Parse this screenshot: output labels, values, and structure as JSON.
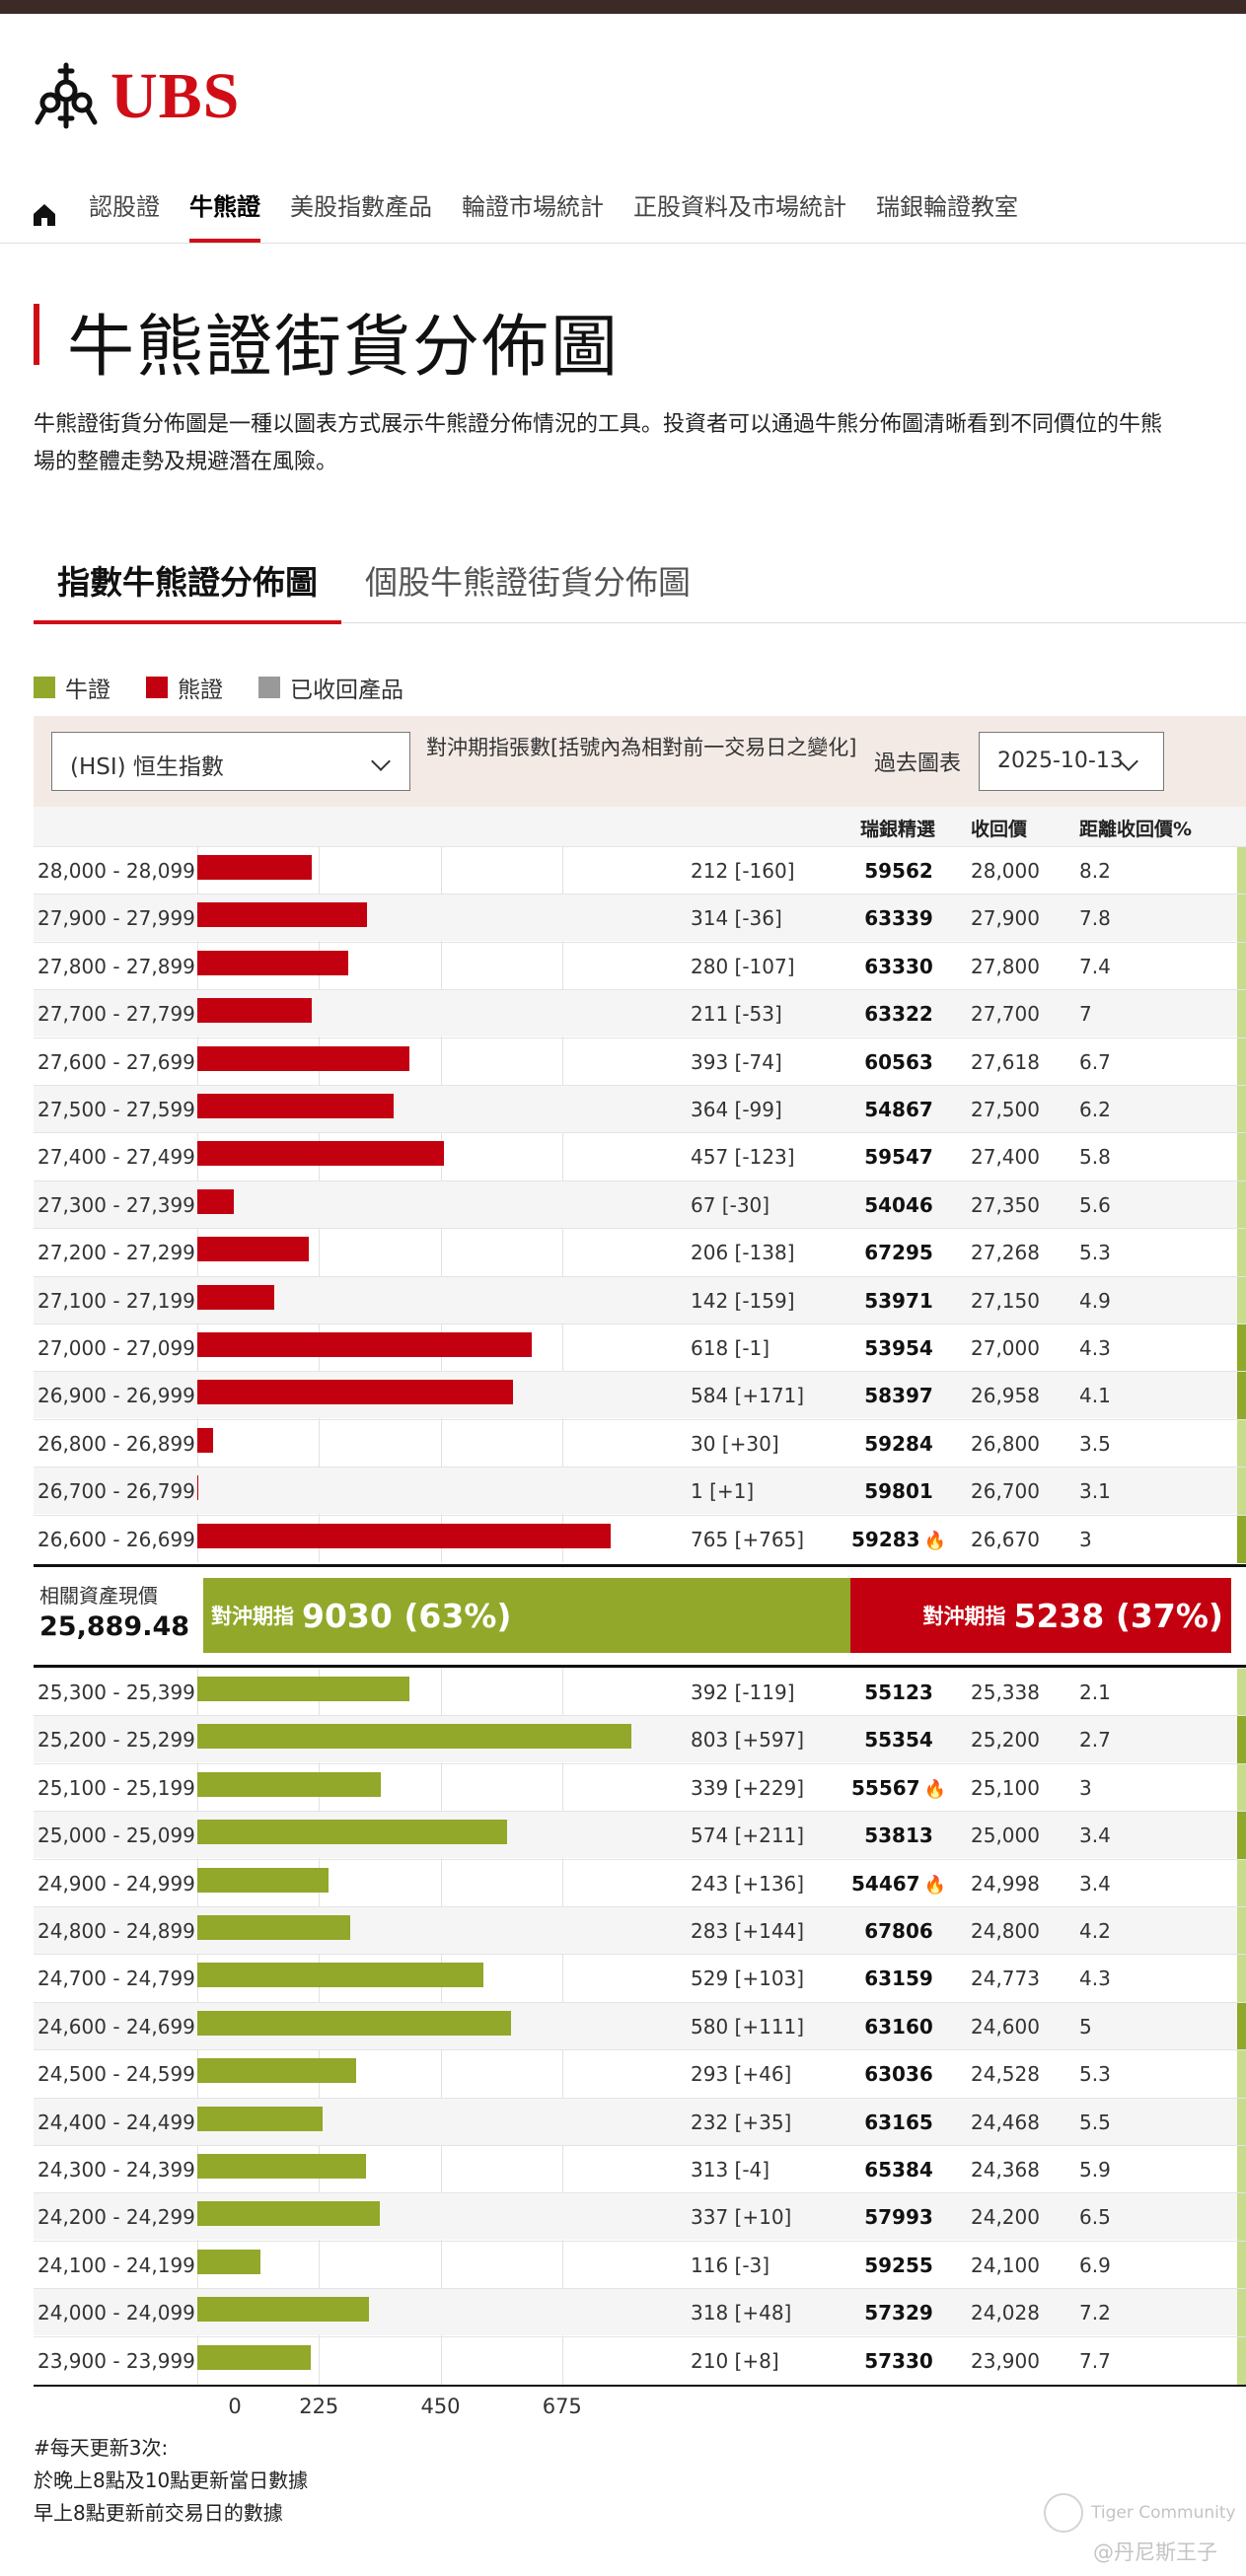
{
  "brand": {
    "name": "UBS",
    "color": "#d00d16"
  },
  "nav": {
    "items": [
      "認股證",
      "牛熊證",
      "美股指數產品",
      "輪證市場統計",
      "正股資料及市場統計",
      "瑞銀輪證教室"
    ],
    "active": "牛熊證"
  },
  "page": {
    "title": "牛熊證街貨分佈圖",
    "intro_line1": "牛熊證街貨分佈圖是一種以圖表方式展示牛熊證分佈情況的工具。投資者可以通過牛熊分佈圖清晰看到不同價位的牛熊",
    "intro_line2": "場的整體走勢及規避潛在風險。"
  },
  "tabs": [
    {
      "label": "指數牛熊證分佈圖",
      "active": true
    },
    {
      "label": "個股牛熊證街貨分佈圖",
      "active": false
    }
  ],
  "legend": [
    {
      "label": "牛證",
      "color": "#91a82a"
    },
    {
      "label": "熊證",
      "color": "#c20010"
    },
    {
      "label": "已收回產品",
      "color": "#999999"
    }
  ],
  "controls": {
    "index_select": "(HSI) 恒生指數",
    "note": "對沖期指張數[括號內為相對前一交易日之變化]",
    "past_label": "過去圖表",
    "date": "2025-10-13"
  },
  "table_headers": {
    "code": "瑞銀精選",
    "call": "收回價",
    "dist": "距離收回價%"
  },
  "current": {
    "label": "相關資產現價",
    "value": "25,889.48",
    "bull_prefix": "對沖期指",
    "bull_value": "9030 (63%)",
    "bear_prefix": "對沖期指",
    "bear_value": "5238 (37%)"
  },
  "chart_data": {
    "type": "bar",
    "orientation": "horizontal",
    "x_ticks": [
      "0",
      "225",
      "450",
      "675"
    ],
    "xlim": [
      0,
      900
    ],
    "bear": [
      {
        "range": "28,000 - 28,099",
        "value": 212,
        "label": "212 [-160]",
        "code": "59562",
        "flame": false,
        "call": "28,000",
        "dist": "8.2"
      },
      {
        "range": "27,900 - 27,999",
        "value": 314,
        "label": "314 [-36]",
        "code": "63339",
        "flame": false,
        "call": "27,900",
        "dist": "7.8"
      },
      {
        "range": "27,800 - 27,899",
        "value": 280,
        "label": "280 [-107]",
        "code": "63330",
        "flame": false,
        "call": "27,800",
        "dist": "7.4"
      },
      {
        "range": "27,700 - 27,799",
        "value": 211,
        "label": "211 [-53]",
        "code": "63322",
        "flame": false,
        "call": "27,700",
        "dist": "7"
      },
      {
        "range": "27,600 - 27,699",
        "value": 393,
        "label": "393 [-74]",
        "code": "60563",
        "flame": false,
        "call": "27,618",
        "dist": "6.7"
      },
      {
        "range": "27,500 - 27,599",
        "value": 364,
        "label": "364 [-99]",
        "code": "54867",
        "flame": false,
        "call": "27,500",
        "dist": "6.2"
      },
      {
        "range": "27,400 - 27,499",
        "value": 457,
        "label": "457 [-123]",
        "code": "59547",
        "flame": false,
        "call": "27,400",
        "dist": "5.8"
      },
      {
        "range": "27,300 - 27,399",
        "value": 67,
        "label": "67 [-30]",
        "code": "54046",
        "flame": false,
        "call": "27,350",
        "dist": "5.6"
      },
      {
        "range": "27,200 - 27,299",
        "value": 206,
        "label": "206 [-138]",
        "code": "67295",
        "flame": false,
        "call": "27,268",
        "dist": "5.3"
      },
      {
        "range": "27,100 - 27,199",
        "value": 142,
        "label": "142 [-159]",
        "code": "53971",
        "flame": false,
        "call": "27,150",
        "dist": "4.9"
      },
      {
        "range": "27,000 - 27,099",
        "value": 618,
        "label": "618 [-1]",
        "code": "53954",
        "flame": false,
        "call": "27,000",
        "dist": "4.3"
      },
      {
        "range": "26,900 - 26,999",
        "value": 584,
        "label": "584 [+171]",
        "code": "58397",
        "flame": false,
        "call": "26,958",
        "dist": "4.1"
      },
      {
        "range": "26,800 - 26,899",
        "value": 30,
        "label": "30 [+30]",
        "code": "59284",
        "flame": false,
        "call": "26,800",
        "dist": "3.5"
      },
      {
        "range": "26,700 - 26,799",
        "value": 1,
        "label": "1 [+1]",
        "code": "59801",
        "flame": false,
        "call": "26,700",
        "dist": "3.1"
      },
      {
        "range": "26,600 - 26,699",
        "value": 765,
        "label": "765 [+765]",
        "code": "59283",
        "flame": true,
        "call": "26,670",
        "dist": "3"
      }
    ],
    "bull": [
      {
        "range": "25,300 - 25,399",
        "value": 392,
        "label": "392 [-119]",
        "code": "55123",
        "flame": false,
        "call": "25,338",
        "dist": "2.1"
      },
      {
        "range": "25,200 - 25,299",
        "value": 803,
        "label": "803 [+597]",
        "code": "55354",
        "flame": false,
        "call": "25,200",
        "dist": "2.7"
      },
      {
        "range": "25,100 - 25,199",
        "value": 339,
        "label": "339 [+229]",
        "code": "55567",
        "flame": true,
        "call": "25,100",
        "dist": "3"
      },
      {
        "range": "25,000 - 25,099",
        "value": 574,
        "label": "574 [+211]",
        "code": "53813",
        "flame": false,
        "call": "25,000",
        "dist": "3.4"
      },
      {
        "range": "24,900 - 24,999",
        "value": 243,
        "label": "243 [+136]",
        "code": "54467",
        "flame": true,
        "call": "24,998",
        "dist": "3.4"
      },
      {
        "range": "24,800 - 24,899",
        "value": 283,
        "label": "283 [+144]",
        "code": "67806",
        "flame": false,
        "call": "24,800",
        "dist": "4.2"
      },
      {
        "range": "24,700 - 24,799",
        "value": 529,
        "label": "529 [+103]",
        "code": "63159",
        "flame": false,
        "call": "24,773",
        "dist": "4.3"
      },
      {
        "range": "24,600 - 24,699",
        "value": 580,
        "label": "580 [+111]",
        "code": "63160",
        "flame": false,
        "call": "24,600",
        "dist": "5"
      },
      {
        "range": "24,500 - 24,599",
        "value": 293,
        "label": "293 [+46]",
        "code": "63036",
        "flame": false,
        "call": "24,528",
        "dist": "5.3"
      },
      {
        "range": "24,400 - 24,499",
        "value": 232,
        "label": "232 [+35]",
        "code": "63165",
        "flame": false,
        "call": "24,468",
        "dist": "5.5"
      },
      {
        "range": "24,300 - 24,399",
        "value": 313,
        "label": "313 [-4]",
        "code": "65384",
        "flame": false,
        "call": "24,368",
        "dist": "5.9"
      },
      {
        "range": "24,200 - 24,299",
        "value": 337,
        "label": "337 [+10]",
        "code": "57993",
        "flame": false,
        "call": "24,200",
        "dist": "6.5"
      },
      {
        "range": "24,100 - 24,199",
        "value": 116,
        "label": "116 [-3]",
        "code": "59255",
        "flame": false,
        "call": "24,100",
        "dist": "6.9"
      },
      {
        "range": "24,000 - 24,099",
        "value": 318,
        "label": "318 [+48]",
        "code": "57329",
        "flame": false,
        "call": "24,028",
        "dist": "7.2"
      },
      {
        "range": "23,900 - 23,999",
        "value": 210,
        "label": "210 [+8]",
        "code": "57330",
        "flame": false,
        "call": "23,900",
        "dist": "7.7"
      }
    ]
  },
  "notes": [
    "#每天更新3次:",
    "於晚上8點及10點更新當日數據",
    "早上8點更新前交易日的數據"
  ],
  "watermark": {
    "brand": "Tiger Community",
    "user": "@丹尼斯王子"
  }
}
